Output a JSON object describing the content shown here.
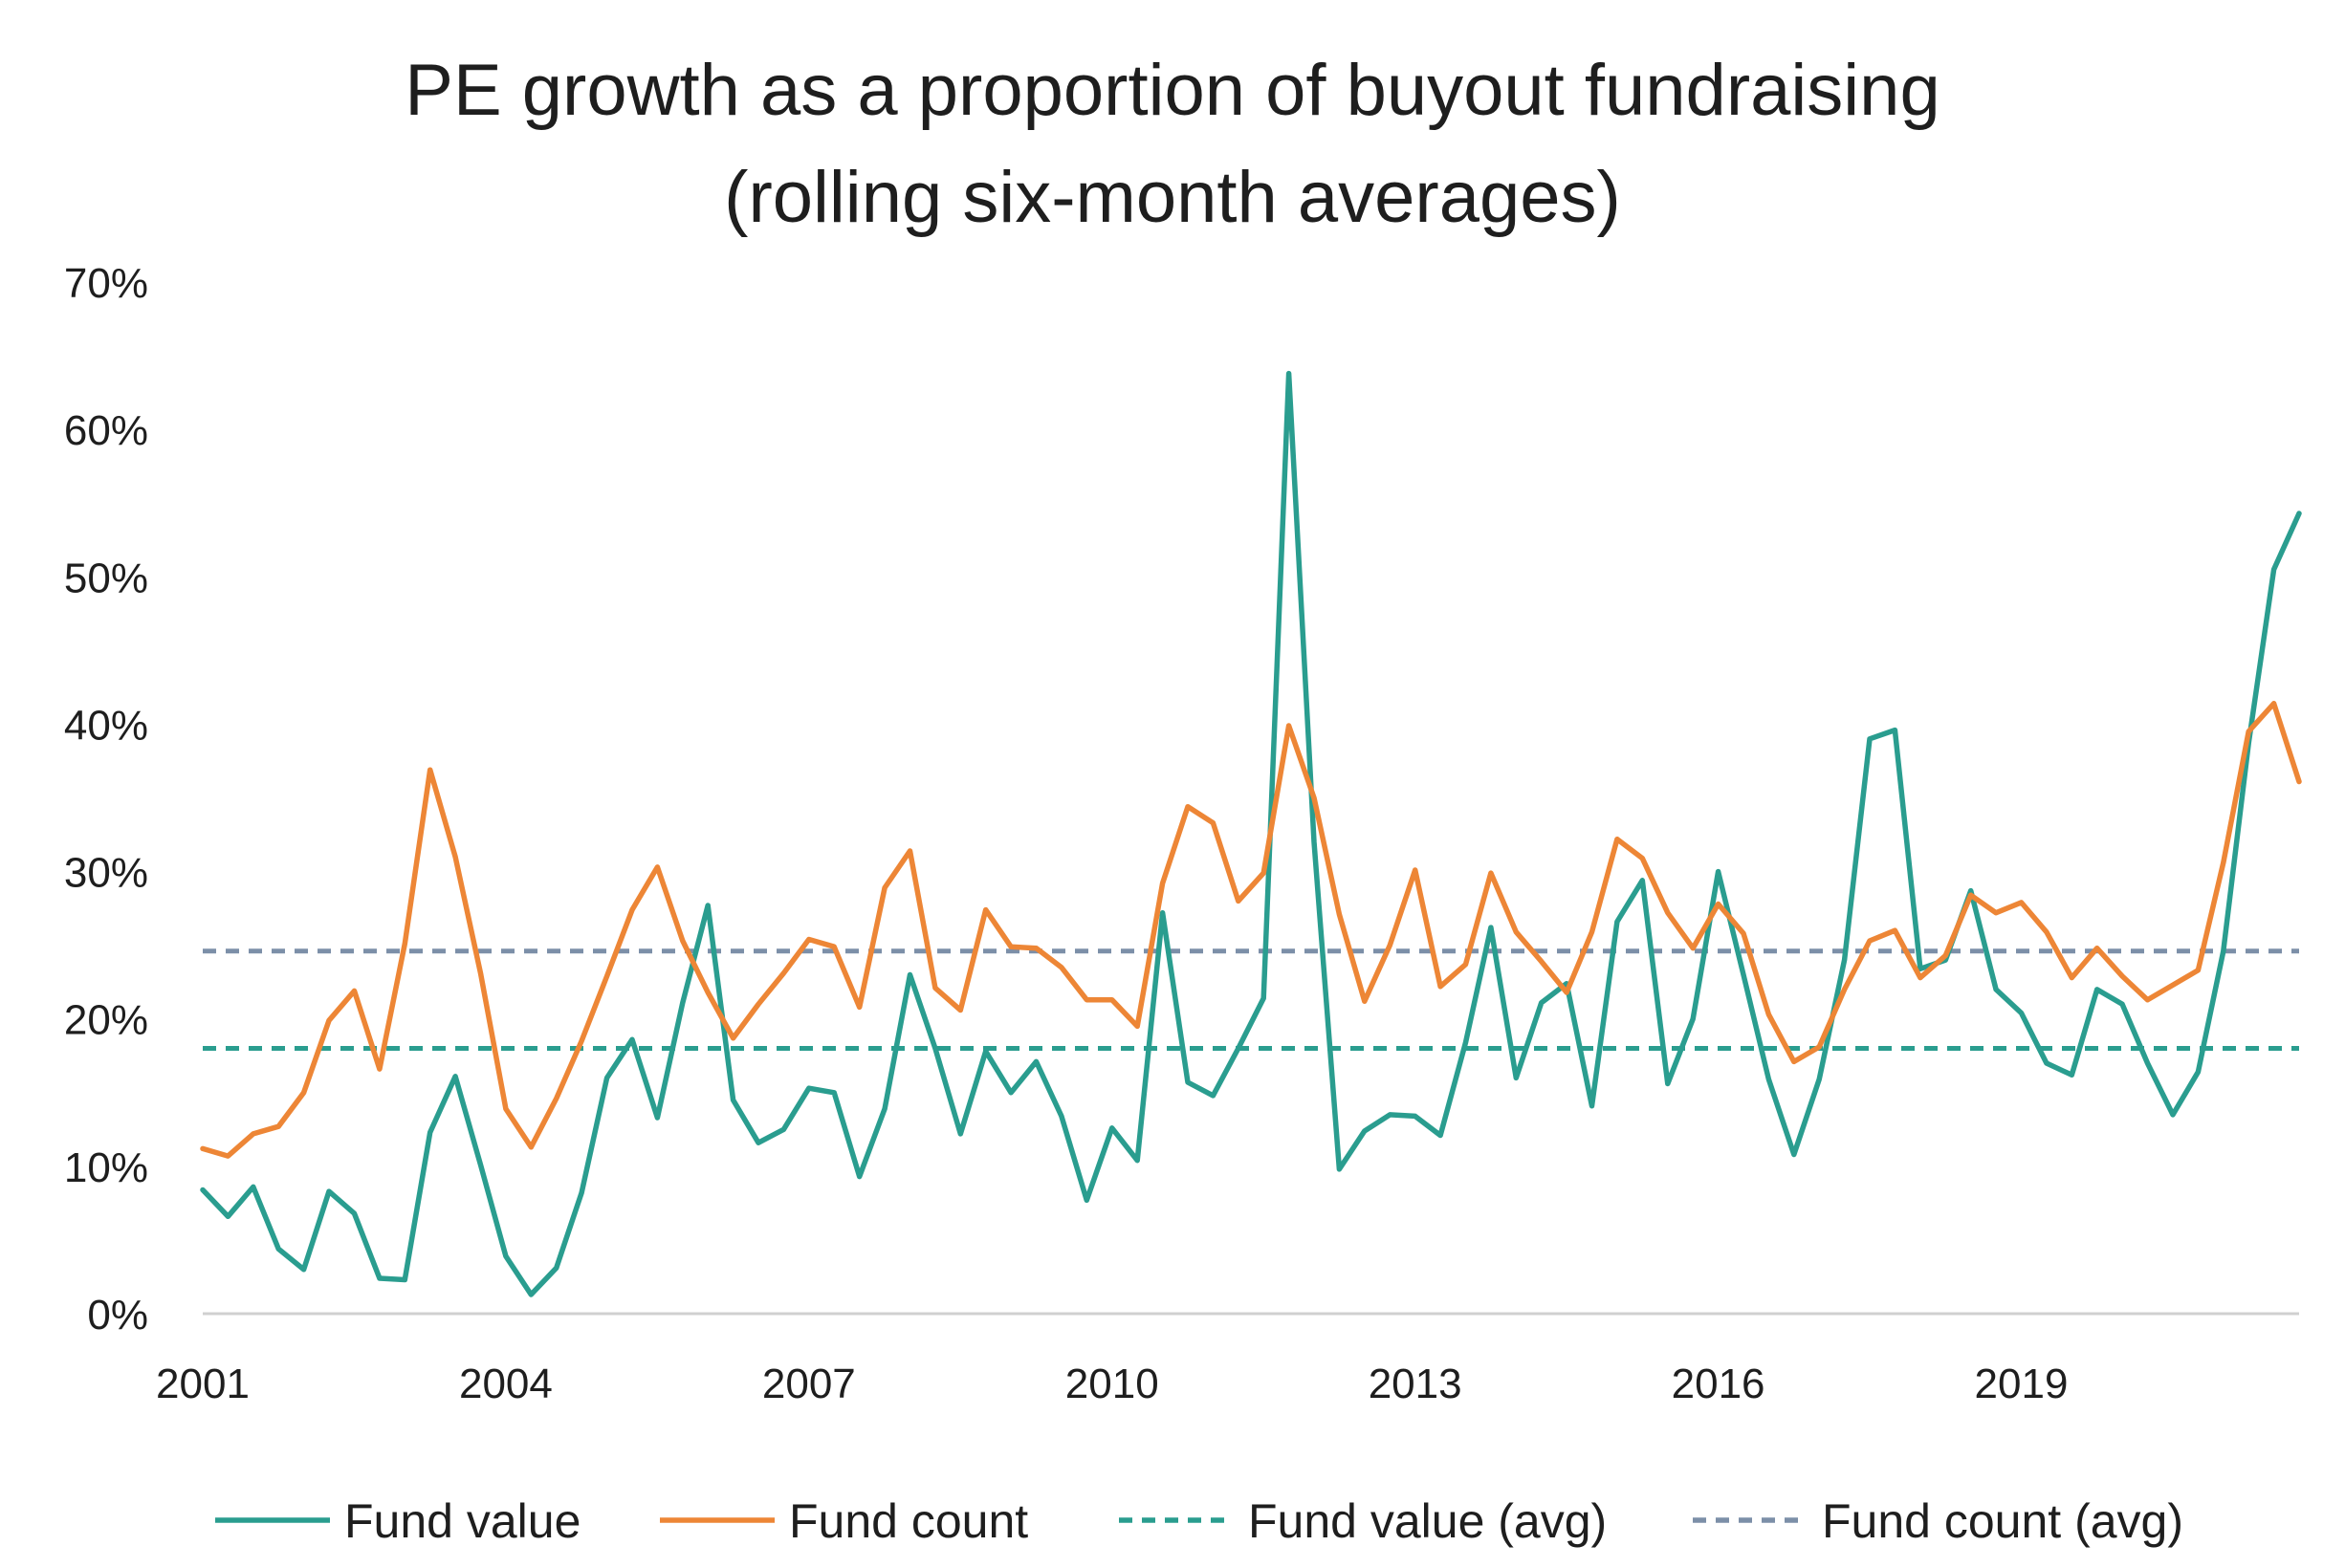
{
  "chart_data": {
    "type": "line",
    "title": "PE growth as a proportion of buyout fundraising",
    "subtitle": "(rolling six-month averages)",
    "xlabel": "",
    "ylabel": "",
    "x_tick_labels": [
      "2001",
      "2004",
      "2007",
      "2010",
      "2013",
      "2016",
      "2019"
    ],
    "x_ticks": [
      2001,
      2004,
      2007,
      2010,
      2013,
      2016,
      2019
    ],
    "x_range": [
      2001,
      2021.75
    ],
    "ylim": [
      0,
      70
    ],
    "y_ticks": [
      0,
      10,
      20,
      30,
      40,
      50,
      60,
      70
    ],
    "y_tick_labels": [
      "0%",
      "10%",
      "20%",
      "30%",
      "40%",
      "50%",
      "60%",
      "70%"
    ],
    "grid": false,
    "legend_position": "bottom",
    "x": [
      2001.0,
      2001.25,
      2001.5,
      2001.75,
      2002.0,
      2002.25,
      2002.5,
      2002.75,
      2003.0,
      2003.25,
      2003.5,
      2003.75,
      2004.0,
      2004.25,
      2004.5,
      2004.75,
      2005.0,
      2005.25,
      2005.5,
      2005.75,
      2006.0,
      2006.25,
      2006.5,
      2006.75,
      2007.0,
      2007.25,
      2007.5,
      2007.75,
      2008.0,
      2008.25,
      2008.5,
      2008.75,
      2009.0,
      2009.25,
      2009.5,
      2009.75,
      2010.0,
      2010.25,
      2010.5,
      2010.75,
      2011.0,
      2011.25,
      2011.5,
      2011.75,
      2012.0,
      2012.25,
      2012.5,
      2012.75,
      2013.0,
      2013.25,
      2013.5,
      2013.75,
      2014.0,
      2014.25,
      2014.5,
      2014.75,
      2015.0,
      2015.25,
      2015.5,
      2015.75,
      2016.0,
      2016.25,
      2016.5,
      2016.75,
      2017.0,
      2017.25,
      2017.5,
      2017.75,
      2018.0,
      2018.25,
      2018.5,
      2018.75,
      2019.0,
      2019.25,
      2019.5,
      2019.75,
      2020.0,
      2020.25,
      2020.5,
      2020.75,
      2021.0,
      2021.25,
      2021.5,
      2021.75
    ],
    "series": [
      {
        "name": "Fund value",
        "color": "#2a9d8f",
        "dashed": false,
        "values": [
          8.4,
          6.6,
          8.6,
          4.4,
          3.0,
          8.3,
          6.8,
          2.4,
          2.3,
          12.3,
          16.1,
          10.1,
          3.9,
          1.3,
          3.1,
          8.2,
          16.0,
          18.6,
          13.3,
          21.1,
          27.7,
          14.5,
          11.6,
          12.5,
          15.3,
          15.0,
          9.3,
          13.9,
          23.0,
          18.0,
          12.2,
          17.8,
          15.0,
          17.1,
          13.4,
          7.7,
          12.6,
          10.4,
          27.2,
          15.7,
          14.8,
          18.0,
          21.4,
          63.8,
          32.0,
          9.8,
          12.4,
          13.5,
          13.4,
          12.1,
          18.4,
          26.2,
          16.0,
          21.1,
          22.4,
          14.1,
          26.6,
          29.4,
          15.6,
          20.0,
          30.0,
          23.0,
          15.9,
          10.8,
          15.9,
          24.0,
          39.0,
          39.6,
          23.4,
          24.0,
          28.7,
          22.0,
          20.4,
          17.0,
          16.2,
          22.0,
          21.0,
          17.0,
          13.5,
          16.4,
          24.6,
          38.7,
          50.5,
          54.3
        ]
      },
      {
        "name": "Fund count",
        "color": "#ed8636",
        "dashed": false,
        "values": [
          11.2,
          10.7,
          12.2,
          12.7,
          15.0,
          19.9,
          21.9,
          16.6,
          25.1,
          36.9,
          31.0,
          23.1,
          13.9,
          11.3,
          14.6,
          18.5,
          22.9,
          27.4,
          30.3,
          25.3,
          21.8,
          18.7,
          21.0,
          23.1,
          25.4,
          24.9,
          20.8,
          28.9,
          31.4,
          22.1,
          20.6,
          27.4,
          24.9,
          24.8,
          23.5,
          21.3,
          21.3,
          19.5,
          29.2,
          34.4,
          33.3,
          28.0,
          29.9,
          39.9,
          35.0,
          27.1,
          21.2,
          25.0,
          30.1,
          22.2,
          23.7,
          29.9,
          25.9,
          23.9,
          21.8,
          25.9,
          32.2,
          30.9,
          27.2,
          24.8,
          27.8,
          25.8,
          20.3,
          17.1,
          18.1,
          22.0,
          25.3,
          26.0,
          22.8,
          24.3,
          28.4,
          27.2,
          27.9,
          25.9,
          22.8,
          24.8,
          22.9,
          21.3,
          22.3,
          23.3,
          30.6,
          39.5,
          41.4,
          36.1
        ]
      },
      {
        "name": "Fund value (avg)",
        "color": "#2a9d8f",
        "dashed": true,
        "constant": 18.0
      },
      {
        "name": "Fund count (avg)",
        "color": "#7c8fa8",
        "dashed": true,
        "constant": 24.6
      }
    ]
  }
}
